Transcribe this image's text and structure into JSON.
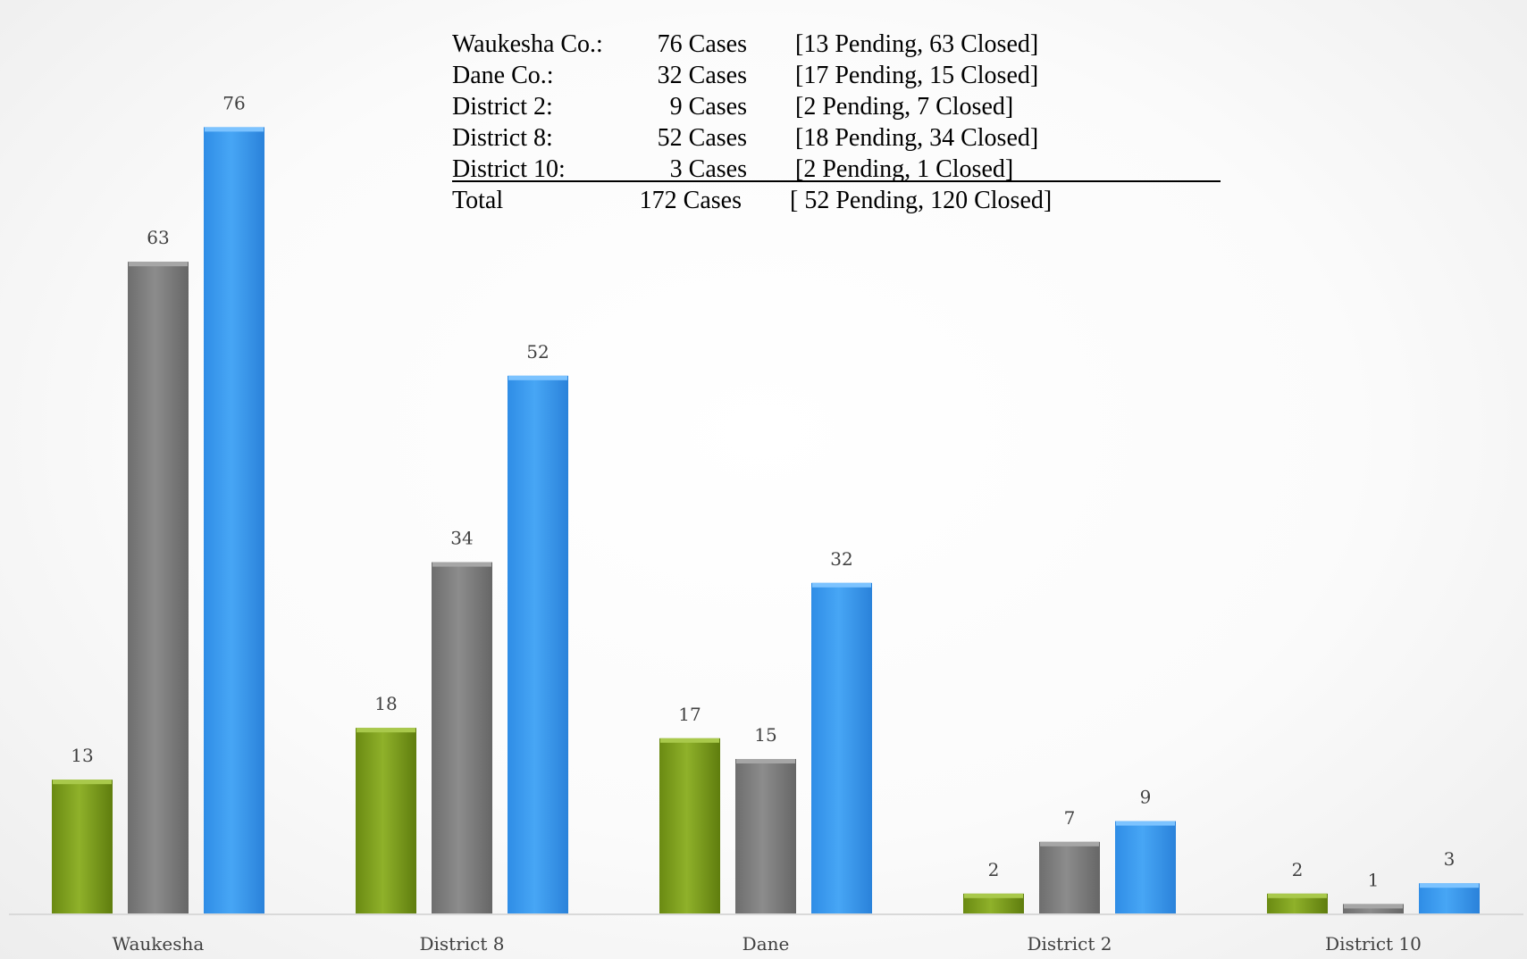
{
  "chart_data": {
    "type": "bar",
    "categories": [
      "Waukesha",
      "District 8",
      "Dane",
      "District 2",
      "District 10"
    ],
    "series": [
      {
        "values": [
          13,
          18,
          17,
          2,
          2
        ],
        "color": "#7a9a1e"
      },
      {
        "values": [
          63,
          34,
          15,
          7,
          1
        ],
        "color": "#7f7f7f"
      },
      {
        "values": [
          76,
          52,
          32,
          9,
          3
        ],
        "color": "#3d9bef"
      }
    ],
    "ylim": [
      0,
      80
    ],
    "grid": false,
    "legend": "none"
  },
  "summary": {
    "rows": [
      {
        "name": "Waukesha Co.:",
        "cases": "76 Cases",
        "detail": "[13 Pending, 63 Closed]"
      },
      {
        "name": "Dane Co.:",
        "cases": "32 Cases",
        "detail": "[17 Pending, 15 Closed]"
      },
      {
        "name": "District 2:",
        "cases": "9  Cases",
        "detail": "[2 Pending, 7 Closed]"
      },
      {
        "name": "District 8:",
        "cases": "52  Cases",
        "detail": "[18 Pending, 34 Closed]"
      },
      {
        "name": "District 10:",
        "cases": "3 Cases",
        "detail": "[2 Pending, 1 Closed]"
      }
    ],
    "total": {
      "name": "Total",
      "cases": "172 Cases",
      "detail": "[ 52 Pending, 120 Closed]"
    }
  }
}
